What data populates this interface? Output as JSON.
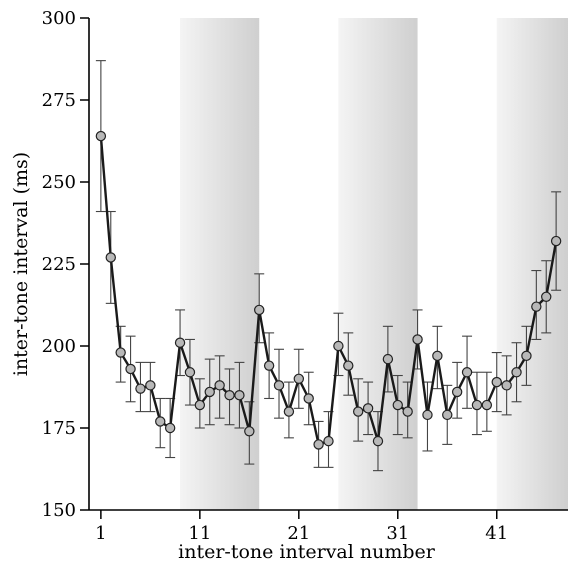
{
  "chart_data": {
    "type": "line",
    "xlabel": "inter-tone interval number",
    "ylabel": "inter-tone interval (ms)",
    "xlim": [
      -0.2,
      48.2
    ],
    "ylim": [
      150,
      300
    ],
    "xticks": [
      1,
      11,
      21,
      31,
      41
    ],
    "yticks": [
      150,
      175,
      200,
      225,
      250,
      275,
      300
    ],
    "grid": false,
    "shaded_regions": [
      [
        9,
        17
      ],
      [
        25,
        33
      ],
      [
        41,
        48.2
      ]
    ],
    "colors": {
      "line": "#1a1a1a",
      "marker_fill": "#b8b8b8",
      "marker_stroke": "#222222",
      "errorbar": "#444444",
      "shade_light": "#f4f4f4",
      "shade_dark": "#cfcfcf"
    },
    "series": [
      {
        "x": [
          1,
          2,
          3,
          4,
          5,
          6,
          7,
          8,
          9,
          10,
          11,
          12,
          13,
          14,
          15,
          16,
          17,
          18,
          19,
          20,
          21,
          22,
          23,
          24,
          25,
          26,
          27,
          28,
          29,
          30,
          31,
          32,
          33,
          34,
          35,
          36,
          37,
          38,
          39,
          40,
          41,
          42,
          43,
          44,
          45,
          46,
          47
        ],
        "values": [
          264,
          227,
          198,
          193,
          187,
          188,
          177,
          175,
          201,
          192,
          182,
          186,
          188,
          185,
          185,
          174,
          211,
          194,
          188,
          180,
          190,
          184,
          170,
          171,
          200,
          194,
          180,
          181,
          171,
          196,
          182,
          180,
          202,
          179,
          197,
          179,
          186,
          192,
          182,
          182,
          189,
          188,
          192,
          197,
          212,
          215,
          232
        ],
        "err_upper": [
          287,
          241,
          206,
          203,
          195,
          195,
          184,
          184,
          211,
          202,
          190,
          196,
          197,
          193,
          195,
          183,
          222,
          204,
          199,
          189,
          199,
          192,
          177,
          180,
          210,
          204,
          190,
          189,
          180,
          206,
          191,
          189,
          211,
          189,
          206,
          188,
          195,
          203,
          192,
          192,
          198,
          197,
          201,
          206,
          223,
          226,
          247
        ],
        "err_lower": [
          241,
          213,
          189,
          183,
          180,
          180,
          169,
          166,
          191,
          182,
          175,
          176,
          178,
          176,
          175,
          164,
          201,
          184,
          178,
          172,
          181,
          176,
          163,
          163,
          191,
          185,
          171,
          173,
          162,
          186,
          173,
          172,
          193,
          168,
          187,
          170,
          178,
          181,
          173,
          174,
          180,
          179,
          183,
          188,
          202,
          204,
          217
        ]
      }
    ]
  }
}
